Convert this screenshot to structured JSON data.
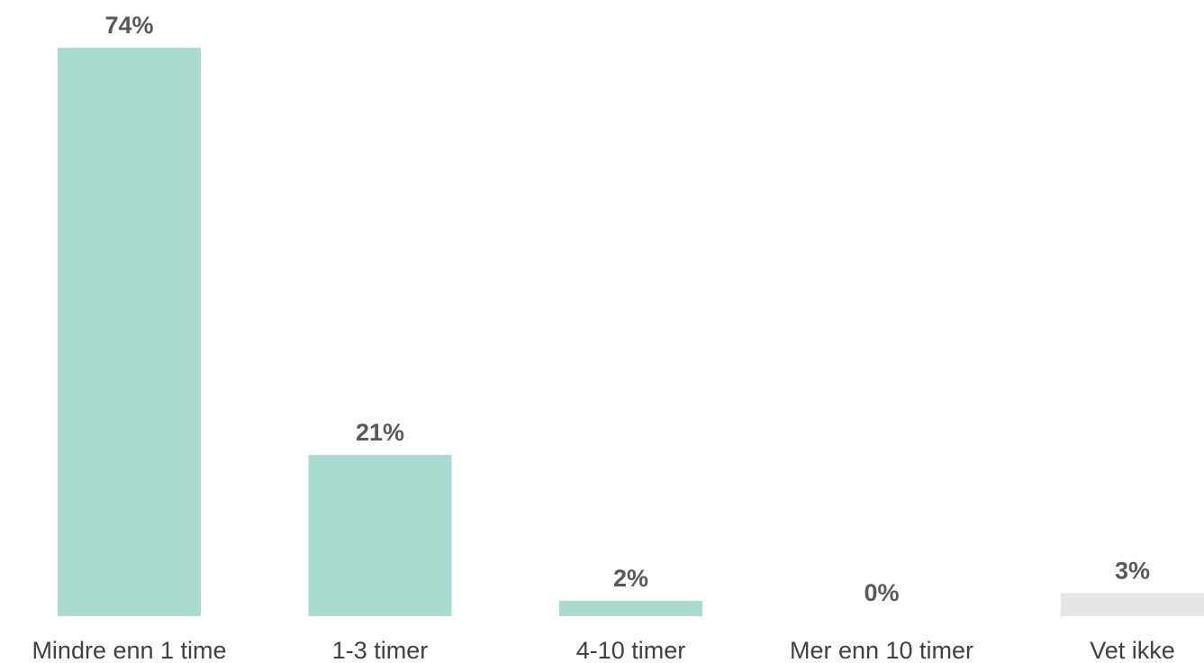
{
  "chart_data": {
    "type": "bar",
    "categories": [
      "Mindre enn 1 time",
      "1-3 timer",
      "4-10 timer",
      "Mer enn 10 timer",
      "Vet ikke"
    ],
    "values": [
      74,
      21,
      2,
      0,
      3
    ],
    "data_labels": [
      "74%",
      "21%",
      "2%",
      "0%",
      "3%"
    ],
    "bar_colors": [
      "#aadbd1",
      "#aadbd1",
      "#aadbd1",
      "#aadbd1",
      "#e6e6e6"
    ],
    "title": "",
    "xlabel": "",
    "ylabel": "",
    "ylim": [
      0,
      74
    ],
    "grid": false,
    "legend": "none"
  }
}
